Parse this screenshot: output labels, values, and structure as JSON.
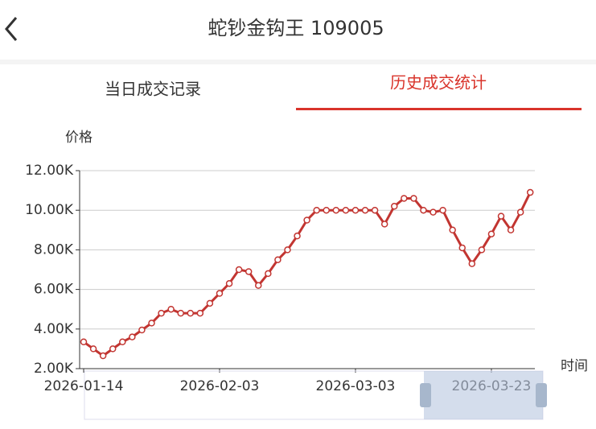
{
  "header": {
    "title": "蛇钞金钩王 109005"
  },
  "tabs": [
    "当日成交记录",
    "历史成交统计"
  ],
  "chart_data": {
    "type": "line",
    "y_axis_label": "价格",
    "x_axis_label": "时间",
    "categories": [
      "2026-01-14",
      null,
      null,
      null,
      null,
      null,
      null,
      null,
      null,
      null,
      null,
      null,
      null,
      null,
      "2026-02-03",
      null,
      null,
      null,
      null,
      null,
      null,
      null,
      null,
      null,
      null,
      null,
      null,
      null,
      "2026-03-03",
      null,
      null,
      null,
      null,
      null,
      null,
      null,
      null,
      null,
      null,
      null,
      null,
      null,
      "2026-03-23",
      null,
      null,
      null,
      null
    ],
    "series": [
      {
        "name": "价格",
        "color": "#c23531",
        "values": [
          3350,
          3000,
          2650,
          3000,
          3350,
          3600,
          3950,
          4300,
          4800,
          5000,
          4800,
          4800,
          4800,
          5300,
          5800,
          6300,
          7000,
          6900,
          6200,
          6800,
          7500,
          8000,
          8700,
          9500,
          10000,
          10000,
          10000,
          10000,
          10000,
          10000,
          10000,
          9300,
          10200,
          10600,
          10600,
          10000,
          9900,
          10000,
          9000,
          8100,
          7300,
          8000,
          8800,
          9700,
          9000,
          9900,
          10900
        ]
      }
    ],
    "ylim": [
      2000,
      12000
    ],
    "yticks": [
      {
        "value": 2000,
        "label": "2.00K"
      },
      {
        "value": 4000,
        "label": "4.00K"
      },
      {
        "value": 6000,
        "label": "6.00K"
      },
      {
        "value": 8000,
        "label": "8.00K"
      },
      {
        "value": 10000,
        "label": "10.00K"
      },
      {
        "value": 12000,
        "label": "12.00K"
      }
    ],
    "grid": true
  }
}
